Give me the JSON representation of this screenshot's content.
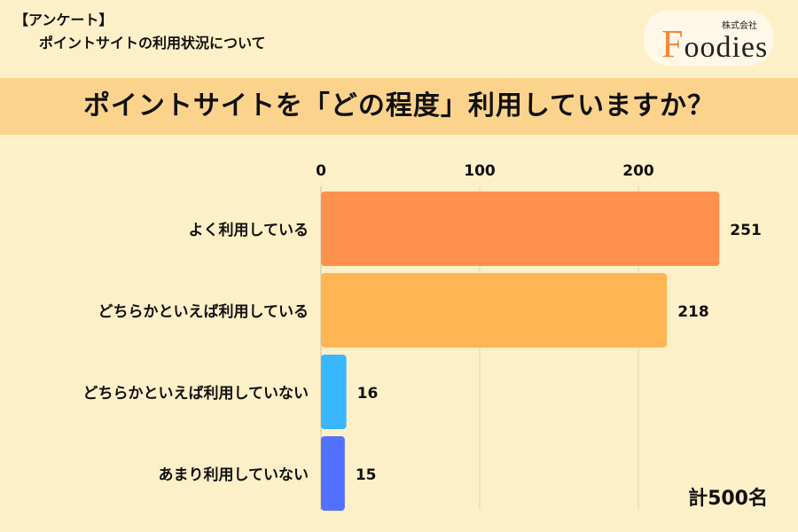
{
  "header": {
    "tag": "【アンケート】",
    "subtitle": "ポイントサイトの利用状況について"
  },
  "logo": {
    "company": "株式会社",
    "initial": "F",
    "rest": "oodies",
    "color": "#f08a3c"
  },
  "title": "ポイントサイトを「どの程度」利用していますか？",
  "total": "計500名",
  "chart_data": {
    "type": "bar",
    "orientation": "horizontal",
    "categories": [
      "よく利用している",
      "どちらかといえば利用している",
      "どちらかといえば利用していない",
      "あまり利用していない"
    ],
    "values": [
      251,
      218,
      16,
      15
    ],
    "colors": [
      "#ff914d",
      "#ffb554",
      "#38b6ff",
      "#5271ff"
    ],
    "xlim": [
      0,
      280
    ],
    "xticks": [
      0,
      100,
      200
    ],
    "tick_position": "top",
    "grid": true
  }
}
